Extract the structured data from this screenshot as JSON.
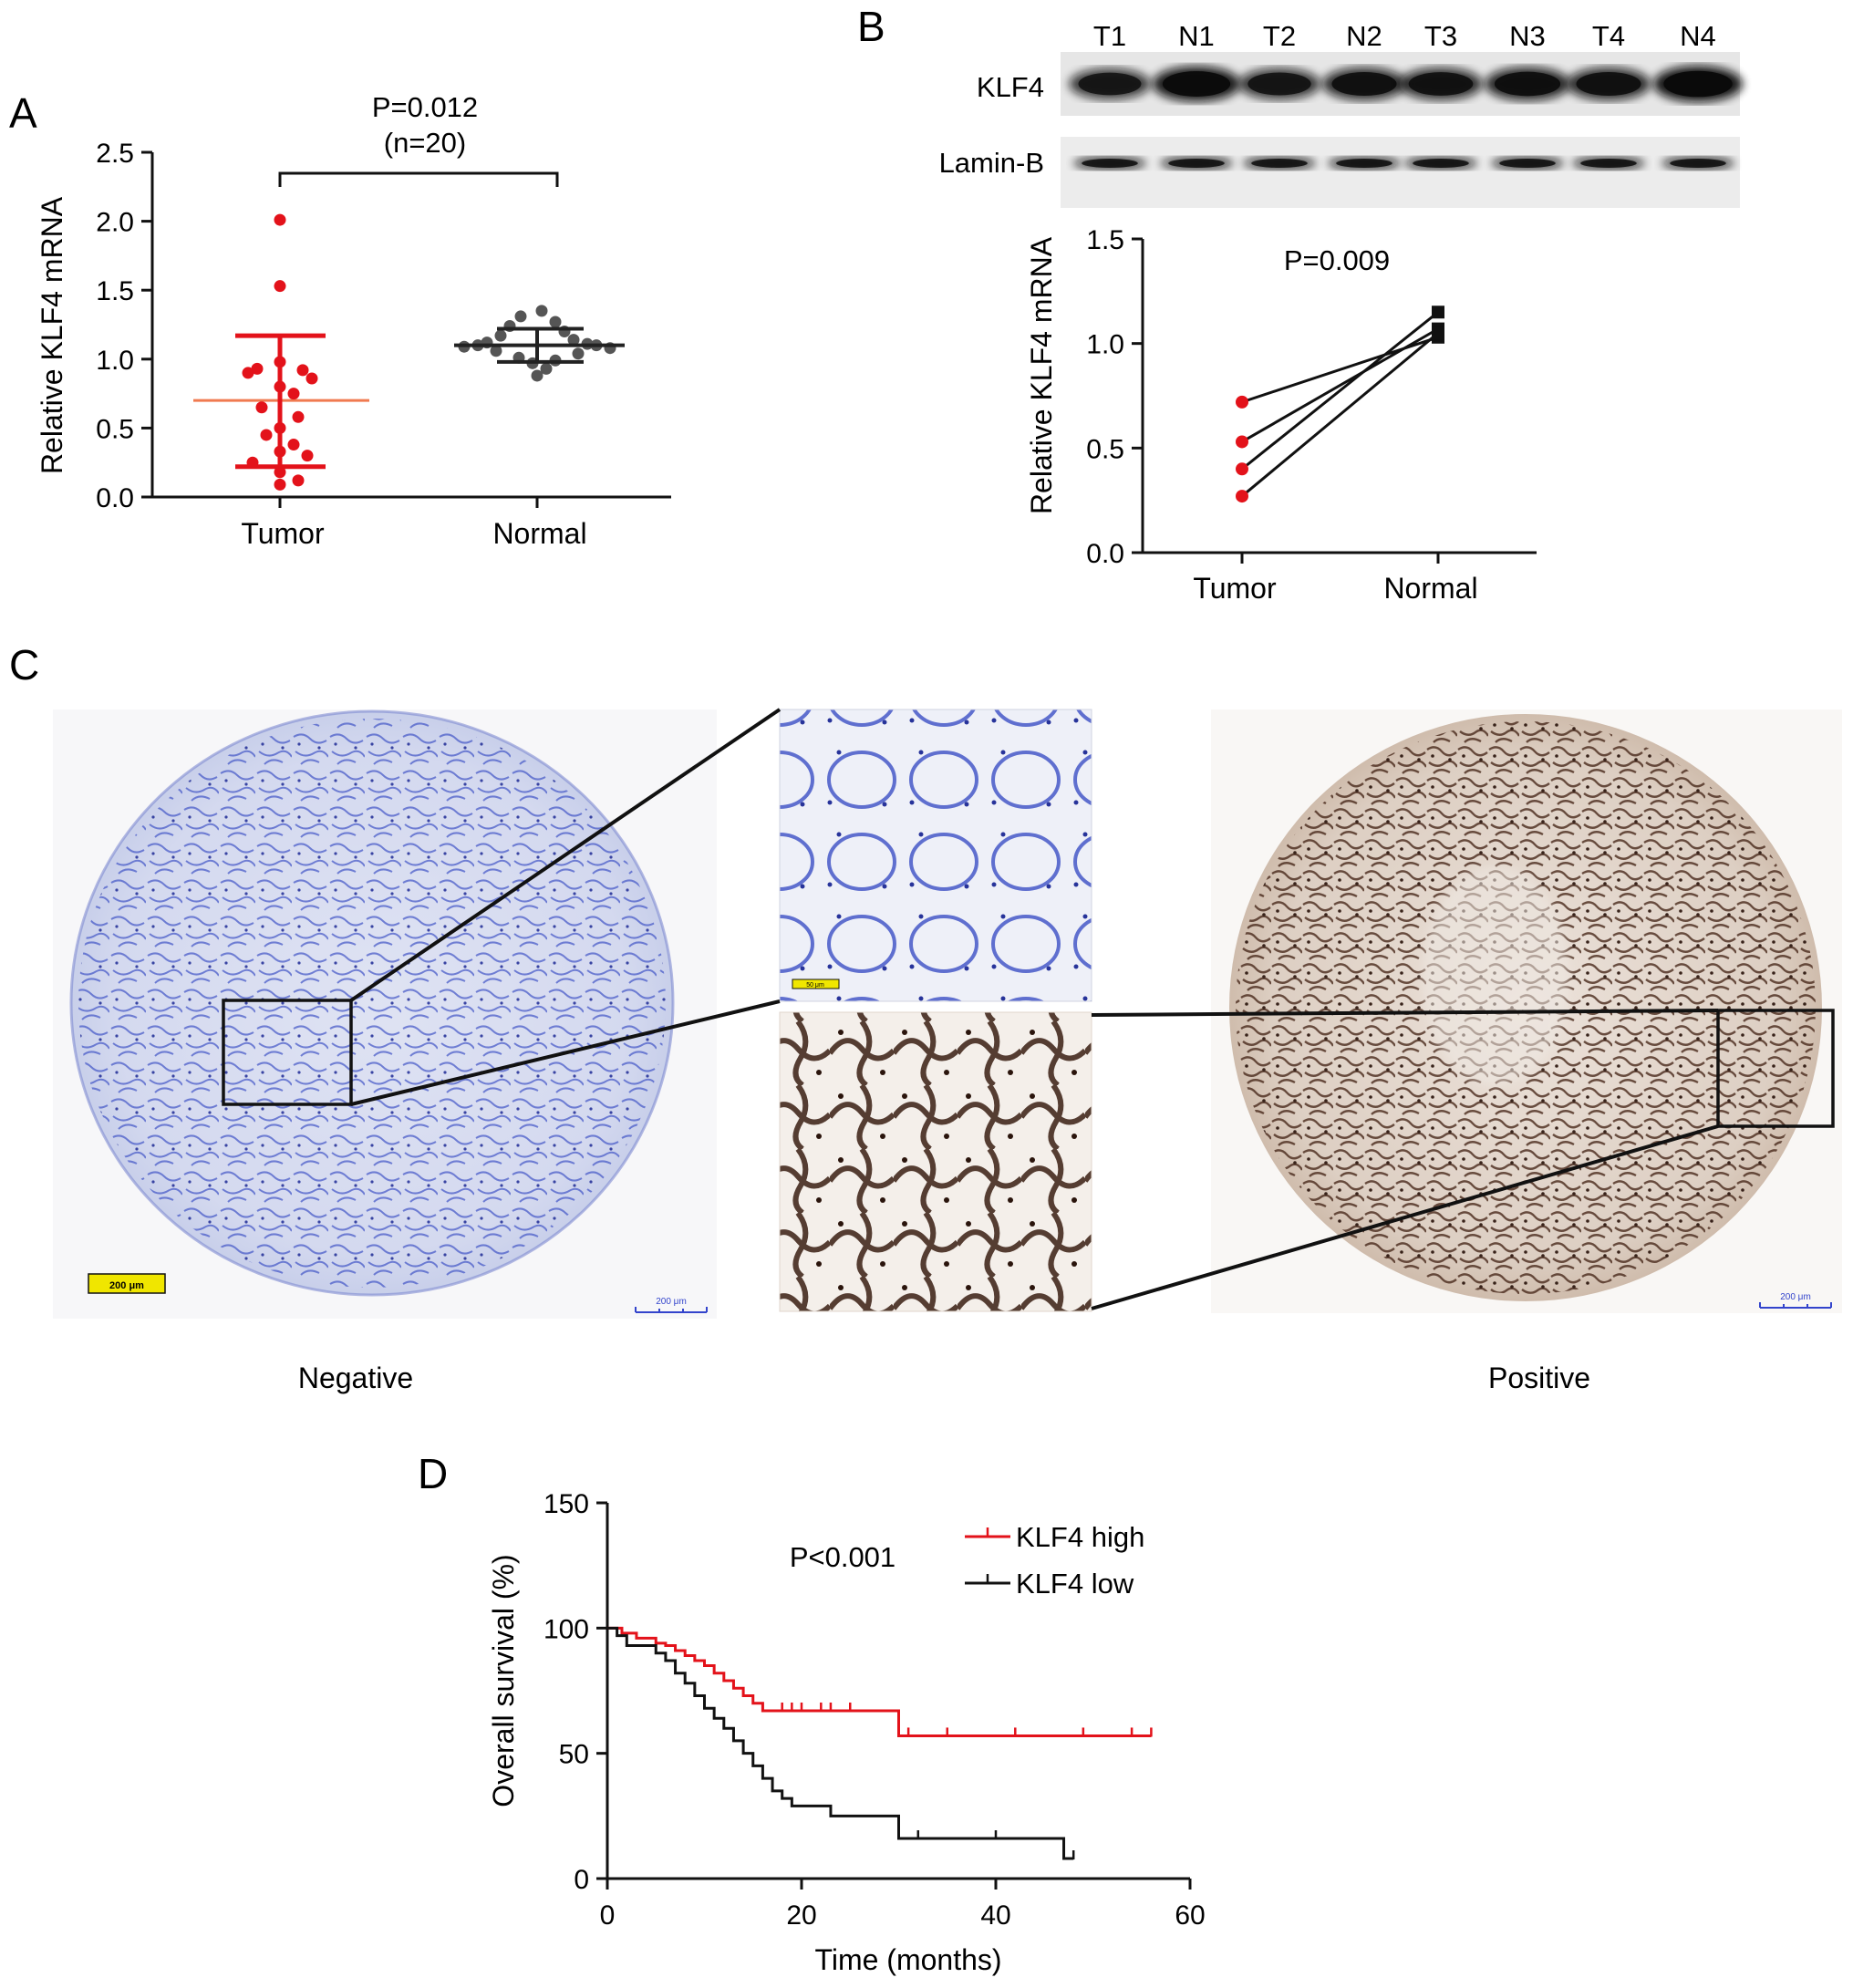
{
  "panels": {
    "a": {
      "letter": "A"
    },
    "b": {
      "letter": "B"
    },
    "c": {
      "letter": "C"
    },
    "d": {
      "letter": "D"
    }
  },
  "colors": {
    "tumor": "#e3121a",
    "normal": "#555555",
    "mean_line_tumor": "#f07a50",
    "high": "#e3121a",
    "low": "#111111",
    "negative_stain": "#3b4fc4",
    "positive_stain": "#4a2a1c",
    "scalebar_yellow": "#f0e600",
    "scalebar_blue": "#3344cc"
  },
  "chart_data": [
    {
      "panel": "A",
      "type": "scatter",
      "title": "",
      "ylabel": "Relative KLF4 mRNA",
      "xlabel": "",
      "ylim": [
        0,
        2.5
      ],
      "yticks": [
        "0.0",
        "0.5",
        "1.0",
        "1.5",
        "2.0",
        "2.5"
      ],
      "categories": [
        "Tumor",
        "Normal"
      ],
      "annotation": {
        "p": "P=0.012",
        "n": "(n=20)"
      },
      "series": [
        {
          "category": "Tumor",
          "mean": 0.7,
          "sd_low": 0.22,
          "sd_high": 1.17,
          "values": [
            2.01,
            1.53,
            0.98,
            0.93,
            0.92,
            0.9,
            0.86,
            0.8,
            0.75,
            0.65,
            0.58,
            0.5,
            0.45,
            0.38,
            0.33,
            0.3,
            0.25,
            0.18,
            0.12,
            0.09
          ]
        },
        {
          "category": "Normal",
          "mean": 1.1,
          "sd_low": 0.98,
          "sd_high": 1.22,
          "values": [
            1.35,
            1.31,
            1.27,
            1.24,
            1.2,
            1.17,
            1.14,
            1.12,
            1.11,
            1.1,
            1.1,
            1.09,
            1.08,
            1.06,
            1.04,
            1.01,
            0.99,
            0.97,
            0.93,
            0.88
          ]
        }
      ]
    },
    {
      "panel": "B",
      "type": "line",
      "title": "",
      "ylabel": "Relative KLF4 mRNA",
      "xlabel": "",
      "ylim": [
        0,
        1.5
      ],
      "yticks": [
        "0.0",
        "0.5",
        "1.0",
        "1.5"
      ],
      "categories": [
        "Tumor",
        "Normal"
      ],
      "annotation": "P=0.009",
      "pairs": [
        {
          "tumor": 0.72,
          "normal": 1.03
        },
        {
          "tumor": 0.53,
          "normal": 1.07
        },
        {
          "tumor": 0.4,
          "normal": 1.15
        },
        {
          "tumor": 0.27,
          "normal": 1.05
        }
      ],
      "blot": {
        "lanes": [
          "T1",
          "N1",
          "T2",
          "N2",
          "T3",
          "N3",
          "T4",
          "N4"
        ],
        "rows": [
          {
            "label": "KLF4",
            "intensity": [
              0.7,
              0.95,
              0.72,
              0.8,
              0.78,
              0.85,
              0.8,
              1.0
            ]
          },
          {
            "label": "Lamin-B",
            "intensity": [
              0.8,
              0.8,
              0.8,
              0.8,
              0.8,
              0.8,
              0.8,
              0.8
            ]
          }
        ]
      }
    },
    {
      "panel": "D",
      "type": "line",
      "title": "",
      "ylabel": "Overall survival (%)",
      "xlabel": "Time (months)",
      "xlim": [
        0,
        60
      ],
      "ylim": [
        0,
        150
      ],
      "xticks": [
        "0",
        "20",
        "40",
        "60"
      ],
      "yticks": [
        "0",
        "50",
        "100",
        "150"
      ],
      "annotation": "P<0.001",
      "legend_position": "top-right",
      "series": [
        {
          "name": "KLF4 high",
          "color": "#e3121a",
          "steps": [
            [
              0,
              100
            ],
            [
              1.5,
              98
            ],
            [
              3,
              96
            ],
            [
              5,
              94
            ],
            [
              6,
              93
            ],
            [
              7,
              91
            ],
            [
              8,
              89
            ],
            [
              9,
              87
            ],
            [
              10,
              85
            ],
            [
              11,
              82
            ],
            [
              12,
              79
            ],
            [
              13,
              76
            ],
            [
              14,
              73
            ],
            [
              15,
              70
            ],
            [
              16,
              67
            ],
            [
              30,
              67
            ],
            [
              30,
              57
            ],
            [
              56,
              57
            ]
          ],
          "censored": [
            16,
            18,
            19,
            20,
            22,
            23,
            25,
            31,
            35,
            42,
            49,
            54,
            56
          ]
        },
        {
          "name": "KLF4 low",
          "color": "#111111",
          "steps": [
            [
              0,
              100
            ],
            [
              1,
              97
            ],
            [
              2,
              93
            ],
            [
              4,
              93
            ],
            [
              5,
              90
            ],
            [
              6,
              87
            ],
            [
              7,
              82
            ],
            [
              8,
              78
            ],
            [
              9,
              73
            ],
            [
              10,
              68
            ],
            [
              11,
              64
            ],
            [
              12,
              60
            ],
            [
              13,
              55
            ],
            [
              14,
              50
            ],
            [
              15,
              45
            ],
            [
              16,
              40
            ],
            [
              17,
              35
            ],
            [
              18,
              32
            ],
            [
              19,
              29
            ],
            [
              23,
              25
            ],
            [
              30,
              25
            ],
            [
              30,
              16
            ],
            [
              47,
              16
            ],
            [
              47,
              8
            ],
            [
              48,
              8
            ]
          ],
          "censored": [
            32,
            40,
            48
          ]
        }
      ]
    }
  ],
  "panel_c": {
    "labels": {
      "negative": "Negative",
      "positive": "Positive"
    },
    "scalebars": {
      "neg_yellow": "200 μm",
      "neg_blue": "200 μm",
      "pos_blue": "200 μm",
      "inset_yellow": "50 μm"
    }
  }
}
